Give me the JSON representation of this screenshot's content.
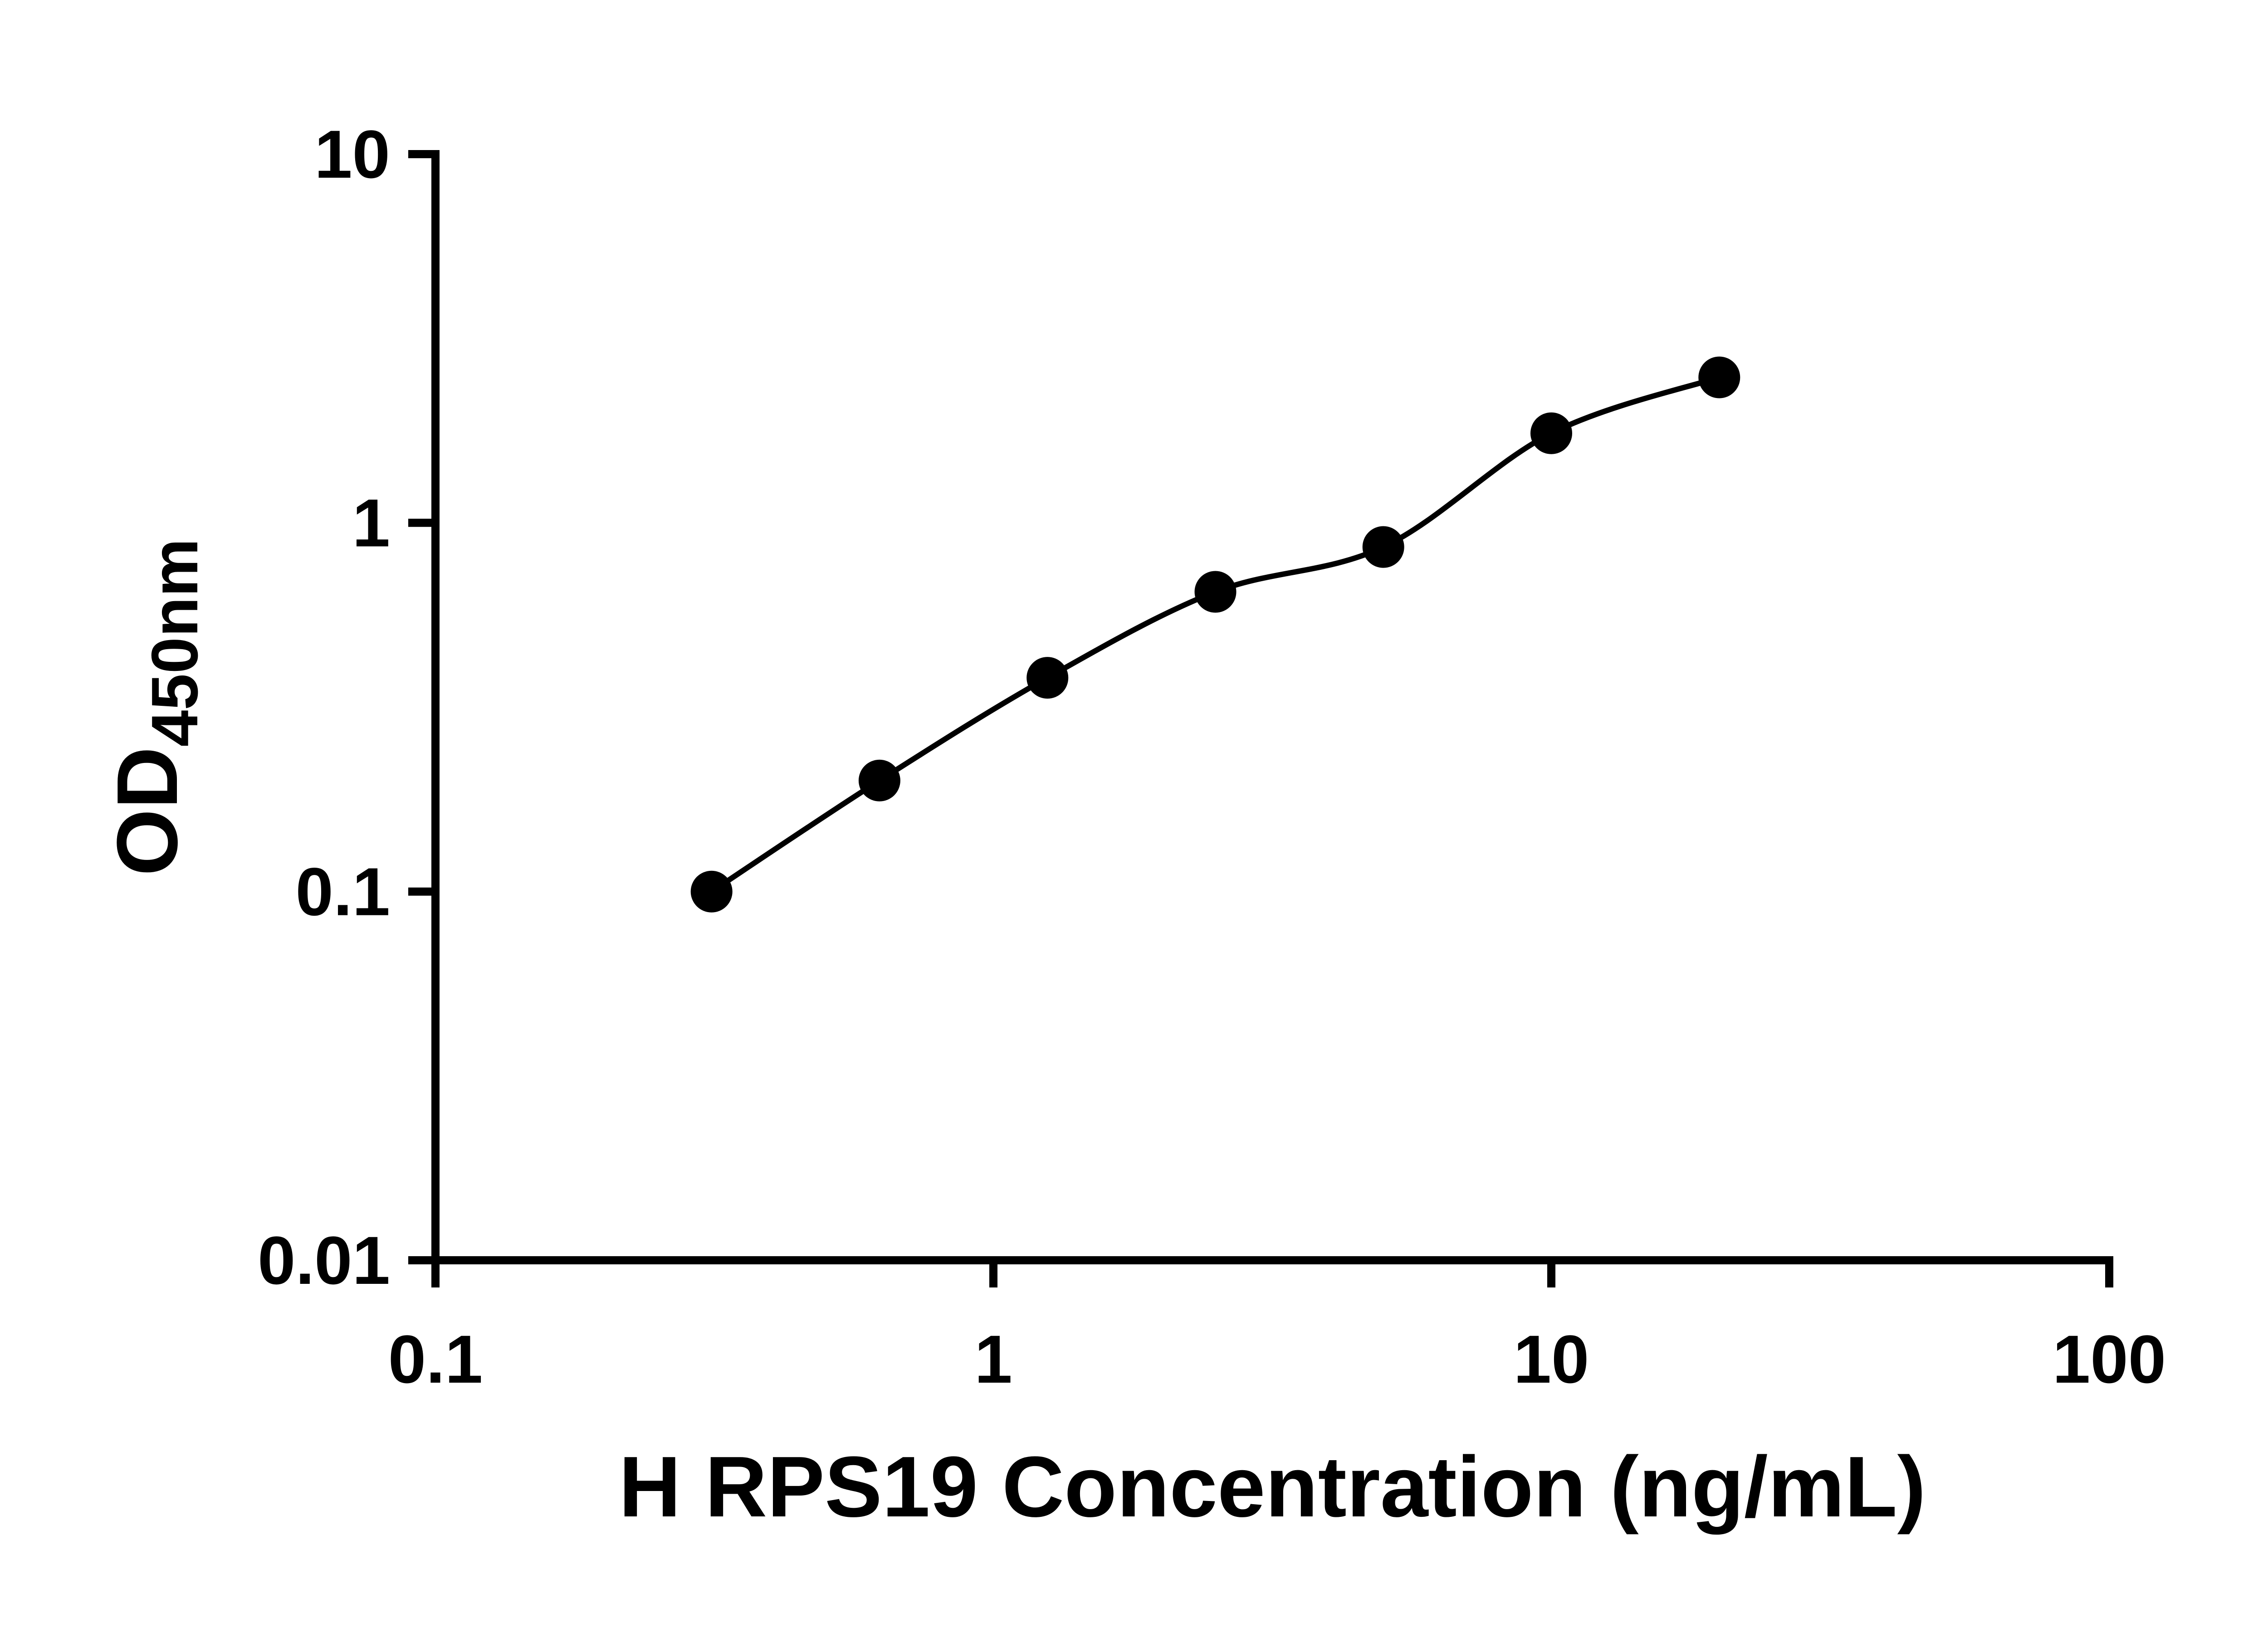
{
  "chart_data": {
    "type": "scatter",
    "title": "",
    "xlabel": "H RPS19 Concentration (ng/mL)",
    "ylabel": "OD450nm",
    "ylabel_main": "OD",
    "ylabel_sub": "450nm",
    "xscale": "log",
    "yscale": "log",
    "xlim": [
      0.1,
      100
    ],
    "ylim": [
      0.01,
      10
    ],
    "grid": false,
    "legend": null,
    "x": [
      0.3125,
      0.625,
      1.25,
      2.5,
      5,
      10,
      20
    ],
    "y": [
      0.1,
      0.2,
      0.38,
      0.65,
      0.86,
      1.75,
      2.48
    ],
    "fit_line": "smooth standard-curve fit through all points, drawn from first to last point",
    "x_ticks": [
      {
        "label": "0.1",
        "value": 0.1
      },
      {
        "label": "1",
        "value": 1
      },
      {
        "label": "10",
        "value": 10
      },
      {
        "label": "100",
        "value": 100
      }
    ],
    "y_ticks": [
      {
        "label": "10",
        "value": 10
      },
      {
        "label": "1",
        "value": 1
      },
      {
        "label": "0.1",
        "value": 0.1
      },
      {
        "label": "0.01",
        "value": 0.01
      }
    ],
    "marker": {
      "shape": "circle",
      "color": "#000000",
      "radius_px": 46
    },
    "line_color": "#000000",
    "axis_color": "#000000"
  }
}
